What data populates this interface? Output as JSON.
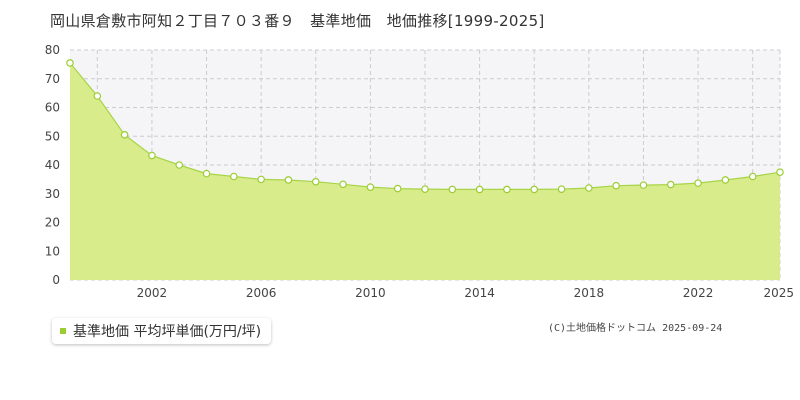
{
  "title": "岡山県倉敷市阿知２丁目７０３番９　基準地価　地価推移[1999-2025]",
  "legend_label": "基準地価 平均坪単価(万円/坪)",
  "copyright": "(C)土地価格ドットコム 2025-09-24",
  "colors": {
    "fill": "#d8ec8c",
    "line": "#a8d448",
    "marker": "#9acd32",
    "band": "#f5f5f7"
  },
  "chart_data": {
    "type": "area",
    "title": "岡山県倉敷市阿知２丁目７０３番９　基準地価　地価推移[1999-2025]",
    "legend": [
      "基準地価 平均坪単価(万円/坪)"
    ],
    "x_tick_labels": [
      "2002",
      "2006",
      "2010",
      "2014",
      "2018",
      "2022",
      "2025"
    ],
    "y_tick_labels": [
      "0",
      "10",
      "20",
      "30",
      "40",
      "50",
      "60",
      "70",
      "80"
    ],
    "xlim": [
      1999,
      2025
    ],
    "ylim": [
      0,
      80
    ],
    "grid": true,
    "series": [
      {
        "name": "基準地価 平均坪単価(万円/坪)",
        "x": [
          1999,
          2000,
          2001,
          2002,
          2003,
          2004,
          2005,
          2006,
          2007,
          2008,
          2009,
          2010,
          2011,
          2012,
          2013,
          2014,
          2015,
          2016,
          2017,
          2018,
          2019,
          2020,
          2021,
          2022,
          2023,
          2024,
          2025
        ],
        "values": [
          75.5,
          64,
          50.5,
          43.3,
          40,
          37,
          36,
          35,
          34.8,
          34.2,
          33.3,
          32.3,
          31.8,
          31.6,
          31.5,
          31.5,
          31.5,
          31.5,
          31.6,
          32,
          32.8,
          33,
          33.2,
          33.7,
          34.8,
          36,
          37.5
        ]
      }
    ]
  }
}
